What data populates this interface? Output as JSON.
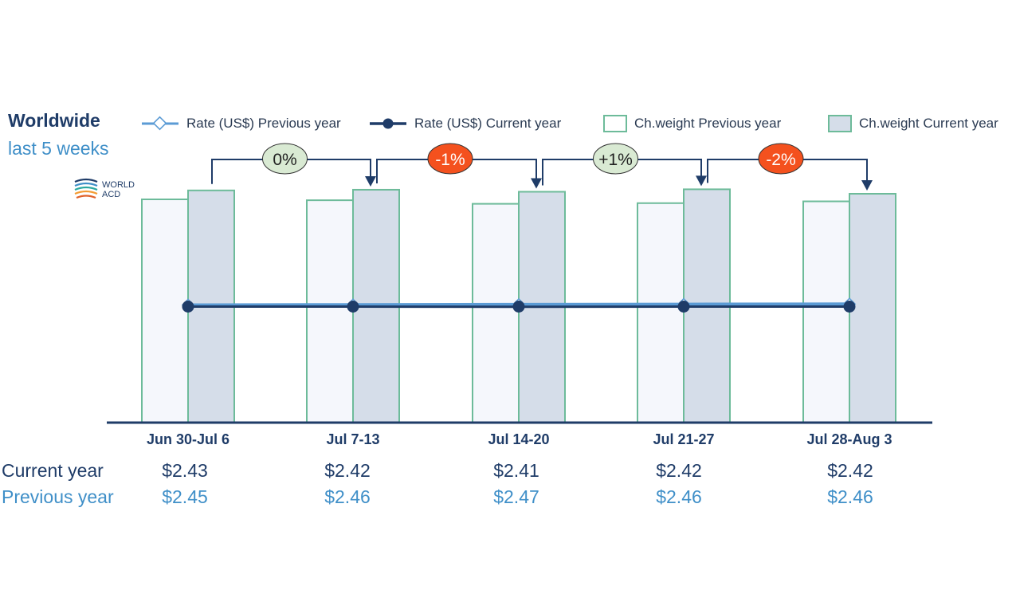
{
  "header": {
    "title": "Worldwide",
    "subtitle": "last 5 weeks"
  },
  "logo": {
    "line1": "WORLD",
    "line2": "ACD"
  },
  "legend": [
    {
      "label": "Rate (US$) Previous year",
      "marker": "line-open-diamond",
      "color": "#5b9bd5"
    },
    {
      "label": "Rate (US$) Current year",
      "marker": "line-filled-circle",
      "color": "#1f3c68"
    },
    {
      "label": "Ch.weight Previous year",
      "marker": "box-white",
      "color": "#6dbb9a"
    },
    {
      "label": "Ch.weight Current year",
      "marker": "box-blue-grey",
      "color": "#6dbb9a"
    }
  ],
  "table": {
    "current_label": "Current year",
    "previous_label": "Previous year",
    "current": [
      "$2.43",
      "$2.42",
      "$2.41",
      "$2.42",
      "$2.42"
    ],
    "previous": [
      "$2.45",
      "$2.46",
      "$2.47",
      "$2.46",
      "$2.46"
    ]
  },
  "chart_data": {
    "type": "bar",
    "categories": [
      "Jun 30-Jul 6",
      "Jul 7-13",
      "Jul 14-20",
      "Jul 21-27",
      "Jul 28-Aug 3"
    ],
    "series": [
      {
        "name": "Ch.weight Previous year",
        "kind": "bar",
        "values": [
          100,
          99.6,
          98,
          98.3,
          99.1
        ],
        "color": "#f5f7fc",
        "stroke": "#6dbb9a"
      },
      {
        "name": "Ch.weight Current year",
        "kind": "bar",
        "values": [
          104,
          104.3,
          103.4,
          104.5,
          102.5
        ],
        "color": "#d5dde9",
        "stroke": "#6dbb9a"
      },
      {
        "name": "Rate (US$) Previous year",
        "kind": "line",
        "values": [
          2.45,
          2.46,
          2.47,
          2.46,
          2.46
        ],
        "color": "#5b9bd5"
      },
      {
        "name": "Rate (US$) Current year",
        "kind": "line",
        "values": [
          2.43,
          2.42,
          2.41,
          2.42,
          2.42
        ],
        "color": "#1f3c68"
      }
    ],
    "week_over_week_changes": [
      {
        "label": "0%",
        "fill": "#d9ead3",
        "text_color": "#222222"
      },
      {
        "label": "-1%",
        "fill": "#f4511e",
        "text_color": "#ffffff"
      },
      {
        "label": "+1%",
        "fill": "#d9ead3",
        "text_color": "#222222"
      },
      {
        "label": "-2%",
        "fill": "#f4511e",
        "text_color": "#ffffff"
      }
    ],
    "axis_color": "#1f3c68",
    "grid": false
  }
}
